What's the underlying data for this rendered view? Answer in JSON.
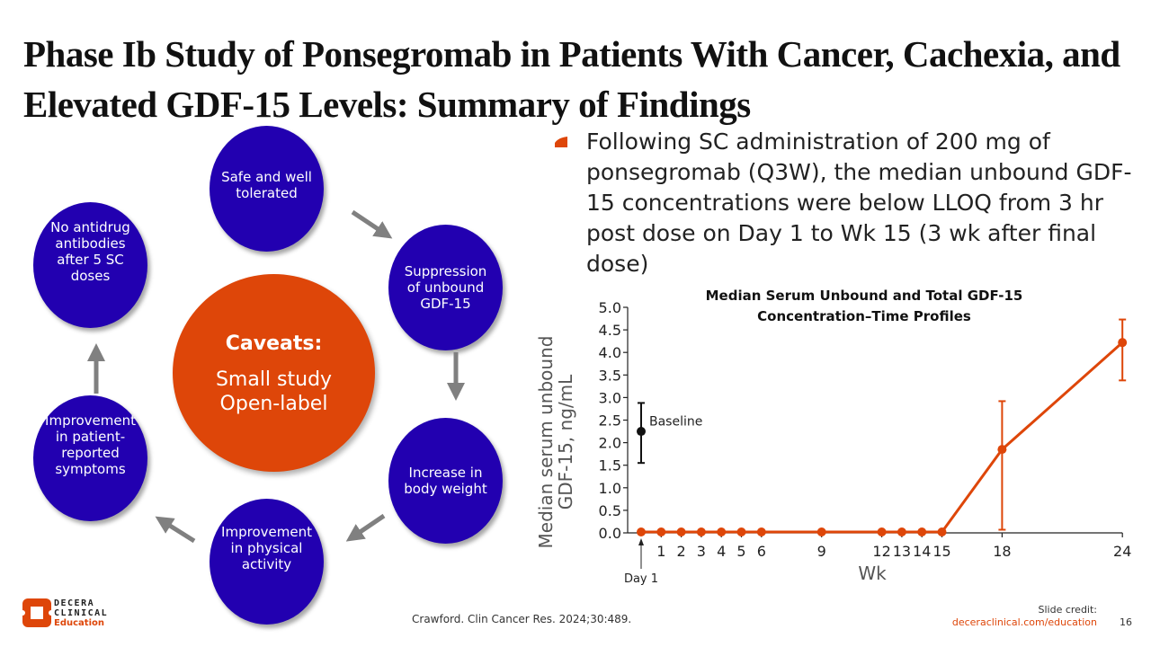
{
  "slide": {
    "title": "Phase Ib Study of Ponsegromab in Patients With Cancer, Cachexia, and Elevated GDF-15 Levels: Summary of Findings",
    "page_number": "16"
  },
  "diagram": {
    "circles": [
      {
        "id": "safe",
        "label": "Safe and well tolerated"
      },
      {
        "id": "suppression",
        "label": "Suppression of unbound GDF-15"
      },
      {
        "id": "weight",
        "label": "Increase in body weight"
      },
      {
        "id": "activity",
        "label": "Improvement in physical activity"
      },
      {
        "id": "symptoms",
        "label": "Improvement in patient-reported symptoms"
      },
      {
        "id": "antidrug",
        "label": "No antidrug antibodies after 5 SC doses"
      }
    ],
    "center": {
      "heading": "Caveats:",
      "lines": [
        "Small study",
        "Open-label"
      ]
    },
    "colors": {
      "circle": "#2200b0",
      "center": "#de4609",
      "arrow": "#808080"
    }
  },
  "bullet": {
    "text": "Following SC administration of 200 mg of ponsegromab (Q3W), the median unbound GDF-15 concentrations were below LLOQ from 3 hr post dose on Day 1 to Wk 15 (3 wk after final dose)"
  },
  "chart_data": {
    "type": "line",
    "title": "Median Serum Unbound and Total GDF-15 Concentration–Time Profiles",
    "title_lines": [
      "Median Serum Unbound and Total GDF-15",
      "Concentration–Time Profiles"
    ],
    "xlabel": "Wk",
    "ylabel_lines": [
      "Median serum unbound",
      "GDF-15, ng/mL"
    ],
    "ylim": [
      0,
      5.0
    ],
    "yticks": [
      "0.0",
      "0.5",
      "1.0",
      "1.5",
      "2.0",
      "2.5",
      "3.0",
      "3.5",
      "4.0",
      "4.5",
      "5.0"
    ],
    "xticks": [
      {
        "x": 1,
        "label": "1"
      },
      {
        "x": 2,
        "label": "2"
      },
      {
        "x": 3,
        "label": "3"
      },
      {
        "x": 4,
        "label": "4"
      },
      {
        "x": 5,
        "label": "5"
      },
      {
        "x": 6,
        "label": "6"
      },
      {
        "x": 9,
        "label": "9"
      },
      {
        "x": 12,
        "label": "12"
      },
      {
        "x": 13,
        "label": "13"
      },
      {
        "x": 14,
        "label": "14"
      },
      {
        "x": 15,
        "label": "15"
      },
      {
        "x": 18,
        "label": "18"
      },
      {
        "x": 24,
        "label": "24"
      }
    ],
    "xlim": [
      0,
      24
    ],
    "day1_annotation": {
      "x": 0,
      "label": "Day 1"
    },
    "baseline": {
      "x": 0,
      "y": 2.25,
      "low": 1.55,
      "high": 2.88,
      "label": "Baseline",
      "color": "#111111"
    },
    "series": [
      {
        "name": "Median serum unbound GDF-15",
        "color": "#de4609",
        "points": [
          {
            "x": 0,
            "y": 0.02
          },
          {
            "x": 1,
            "y": 0.02
          },
          {
            "x": 2,
            "y": 0.02
          },
          {
            "x": 3,
            "y": 0.02
          },
          {
            "x": 4,
            "y": 0.02
          },
          {
            "x": 5,
            "y": 0.02
          },
          {
            "x": 6,
            "y": 0.02
          },
          {
            "x": 9,
            "y": 0.02
          },
          {
            "x": 12,
            "y": 0.02
          },
          {
            "x": 13,
            "y": 0.02
          },
          {
            "x": 14,
            "y": 0.02
          },
          {
            "x": 15,
            "y": 0.02
          },
          {
            "x": 18,
            "y": 1.85,
            "low": 0.07,
            "high": 2.92
          },
          {
            "x": 24,
            "y": 4.22,
            "low": 3.38,
            "high": 4.73
          }
        ]
      }
    ]
  },
  "footer": {
    "citation": "Crawford. Clin Cancer Res. 2024;30:489.",
    "credit_label": "Slide credit:",
    "credit_link": "deceraclinical.com/education",
    "logo_lines": [
      "DECERA",
      "CLINICAL",
      "Education"
    ]
  }
}
